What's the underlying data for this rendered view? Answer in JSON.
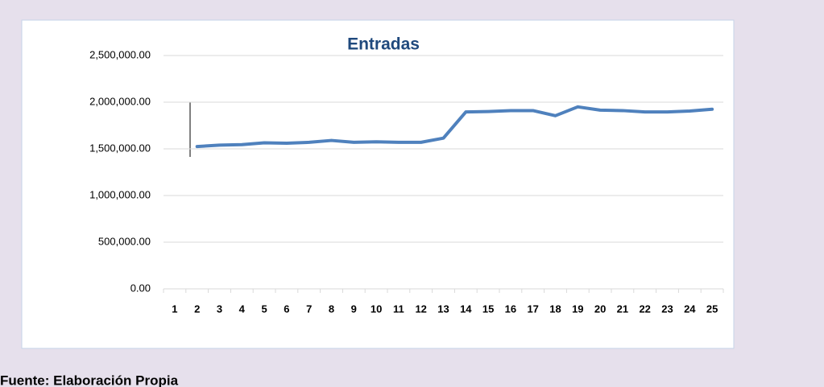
{
  "chart_data": {
    "type": "line",
    "title": "Entradas",
    "categories": [
      "1",
      "2",
      "3",
      "4",
      "5",
      "6",
      "7",
      "8",
      "9",
      "10",
      "11",
      "12",
      "13",
      "14",
      "15",
      "16",
      "17",
      "18",
      "19",
      "20",
      "21",
      "22",
      "23",
      "24",
      "25"
    ],
    "series": [
      {
        "name": "Entradas",
        "color": "#4f81bd",
        "values": [
          null,
          1525000,
          1540000,
          1545000,
          1565000,
          1560000,
          1570000,
          1590000,
          1570000,
          1575000,
          1570000,
          1570000,
          1615000,
          1895000,
          1900000,
          1910000,
          1910000,
          1855000,
          1950000,
          1915000,
          1910000,
          1895000,
          1895000,
          1905000,
          1925000
        ]
      }
    ],
    "ylim": [
      0,
      2500000
    ],
    "yticks": [
      {
        "value": 0,
        "label": "0.00"
      },
      {
        "value": 500000,
        "label": "500,000.00"
      },
      {
        "value": 1000000,
        "label": "1,000,000.00"
      },
      {
        "value": 1500000,
        "label": "1,500,000.00"
      },
      {
        "value": 2000000,
        "label": "2,000,000.00"
      },
      {
        "value": 2500000,
        "label": "2,500,000.00"
      }
    ],
    "grid": true
  },
  "footer": "Fuente: Elaboración Propia"
}
